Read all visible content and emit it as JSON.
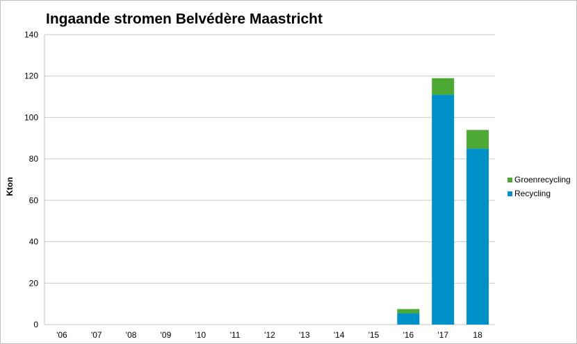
{
  "chart_data": {
    "type": "bar",
    "stacked": true,
    "title": "Ingaande stromen Belvédère Maastricht",
    "xlabel": "",
    "ylabel": "Kton",
    "ylim": [
      0,
      140
    ],
    "yticks": [
      0,
      20,
      40,
      60,
      80,
      100,
      120,
      140
    ],
    "grid": true,
    "legend_position": "right",
    "categories": [
      "'06",
      "'07",
      "'08",
      "'09",
      "'10",
      "'11",
      "'12",
      "'13",
      "'14",
      "'15",
      "'16",
      "'17",
      "18"
    ],
    "series": [
      {
        "name": "Recycling",
        "color": "#0090c8",
        "values": [
          0,
          0,
          0,
          0,
          0,
          0,
          0,
          0,
          0,
          0,
          5.5,
          111,
          85
        ]
      },
      {
        "name": "Groenrecycling",
        "color": "#4ea934",
        "values": [
          0,
          0,
          0,
          0,
          0,
          0,
          0,
          0,
          0,
          0,
          2,
          8,
          9
        ]
      }
    ]
  }
}
